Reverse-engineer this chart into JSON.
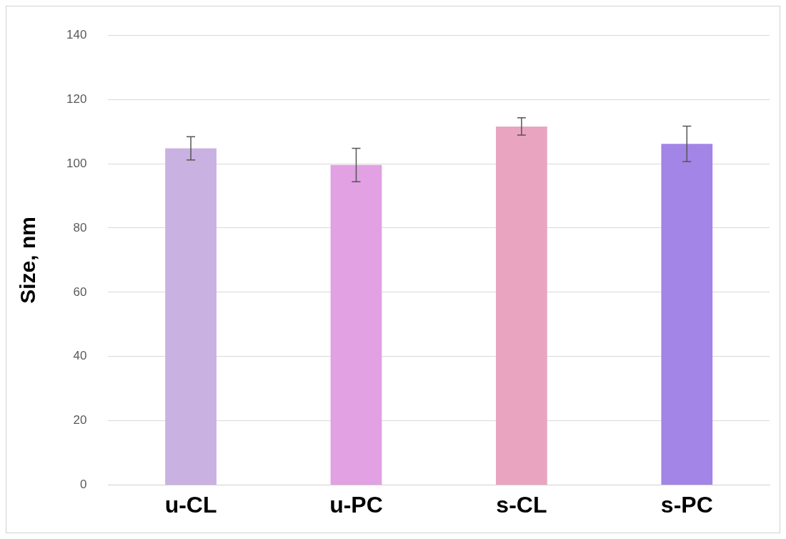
{
  "chart_data": {
    "type": "bar",
    "ylabel": "Size, nm",
    "categories": [
      "u-CL",
      "u-PC",
      "s-CL",
      "s-PC"
    ],
    "values": [
      104.8,
      99.6,
      111.6,
      106.2
    ],
    "colors": [
      "#c9b1e1",
      "#e1a1e3",
      "#e9a5bf",
      "#a285e6"
    ],
    "errors": [
      3.6,
      5.2,
      2.7,
      5.5
    ],
    "ylim": [
      0,
      140
    ],
    "yticks": [
      0,
      20,
      40,
      60,
      80,
      100,
      120,
      140
    ],
    "grid": "y",
    "legend": false
  }
}
